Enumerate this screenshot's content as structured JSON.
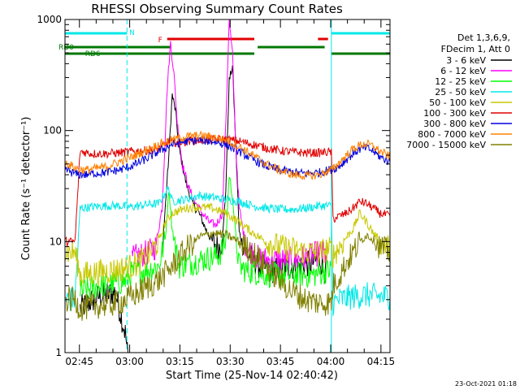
{
  "chart_data": {
    "type": "line",
    "title": "RHESSI Observing Summary Count Rates",
    "ylabel": "Count Rate (s⁻¹ detector⁻¹)",
    "xlabel": "Start Time (25-Nov-14 02:40:42)",
    "x_unit": "minutes after 02:40:42",
    "xlim": [
      0,
      97
    ],
    "ylim": [
      1,
      1000
    ],
    "y_scale": "log",
    "x_tick_labels": [
      "02:45",
      "03:00",
      "03:15",
      "03:30",
      "03:45",
      "04:00",
      "04:15"
    ],
    "x_tick_positions": [
      4.3,
      19.3,
      34.3,
      49.3,
      64.3,
      79.3,
      94.3
    ],
    "y_tick_labels": [
      "1",
      "10",
      "100",
      "1000"
    ],
    "y_tick_values": [
      1,
      10,
      100,
      1000
    ],
    "legend_header": [
      "Det 1,3,6,9,",
      "FDecim 1, Att 0"
    ],
    "legend_position": "right",
    "timestamp": "23-Oct-2021 01:18",
    "flag_labels": {
      "N": "N",
      "F": "F",
      "RD0": "RD0",
      "RD6": "RD6"
    },
    "flags": [
      {
        "label": "N",
        "color": "#00e8e8",
        "row": 0,
        "segments": [
          [
            0,
            18.5
          ],
          [
            79.5,
            97
          ]
        ]
      },
      {
        "label": "F",
        "color": "#e00000",
        "row": 1,
        "segments": [
          [
            30.5,
            56.5
          ],
          [
            75.5,
            78.5
          ]
        ]
      },
      {
        "label": "RD0",
        "color": "#007800",
        "row": 2,
        "segments": [
          [
            0,
            31.5
          ],
          [
            57.5,
            77.5
          ]
        ]
      },
      {
        "label": "RD6",
        "color": "#007800",
        "row": 3,
        "segments": [
          [
            0,
            32.5
          ],
          [
            32.5,
            56.5
          ],
          [
            79.5,
            97
          ]
        ]
      }
    ],
    "vertical_lines": [
      {
        "x": 0,
        "color": "#00e8e8",
        "style": "solid"
      },
      {
        "x": 18.5,
        "color": "#00e8e8",
        "style": "dash"
      },
      {
        "x": 79.5,
        "color": "#00e8e8",
        "style": "solid"
      },
      {
        "x": 97,
        "color": "#00e8e8",
        "style": "dash"
      }
    ],
    "series": [
      {
        "name": "3 - 6 keV",
        "color": "#000000",
        "x": [
          0,
          4,
          4.5,
          10,
          15,
          18,
          19,
          20,
          25,
          29,
          31,
          32,
          33,
          34,
          36,
          38,
          40,
          42,
          44,
          46,
          47,
          48,
          49,
          50,
          51,
          52,
          54,
          58,
          62,
          66,
          70,
          74,
          76,
          78,
          80,
          82,
          84,
          88,
          92,
          97
        ],
        "values": [
          null,
          null,
          2.5,
          3.2,
          3.5,
          1.5,
          0.8,
          null,
          null,
          8,
          60,
          210,
          150,
          70,
          35,
          22,
          18,
          13,
          10,
          9,
          10,
          30,
          280,
          380,
          70,
          12,
          8,
          6,
          5.5,
          5.8,
          6,
          6.5,
          7,
          5,
          null,
          null,
          null,
          null,
          null,
          null
        ]
      },
      {
        "name": "6 - 12 keV",
        "color": "#ff00ff",
        "x": [
          20,
          22,
          25,
          27,
          29,
          30.5,
          31.5,
          32.5,
          33.5,
          35,
          37,
          39,
          41,
          43,
          45,
          47,
          48,
          49,
          50,
          51,
          52,
          54,
          58,
          62,
          66,
          70,
          74,
          76,
          78
        ],
        "values": [
          7,
          7.5,
          8,
          9,
          20,
          240,
          620,
          330,
          120,
          50,
          30,
          22,
          18,
          15,
          14,
          18,
          120,
          980,
          480,
          70,
          20,
          9,
          7,
          6.8,
          6.8,
          7,
          7.5,
          8,
          7.5
        ]
      },
      {
        "name": "12 - 25 keV",
        "color": "#00ff00",
        "x": [
          0,
          4,
          4.5,
          10,
          15,
          18,
          20,
          24,
          28,
          30,
          31,
          32,
          34,
          38,
          42,
          46,
          48,
          49,
          50,
          51,
          52,
          54,
          58,
          62,
          66,
          70,
          74,
          76,
          78,
          79.5,
          80,
          82,
          86,
          90,
          94,
          97
        ],
        "values": [
          null,
          null,
          3.5,
          4,
          4.2,
          4.4,
          5.2,
          5.5,
          6,
          11,
          30,
          13,
          6,
          6.5,
          7,
          7.5,
          10,
          40,
          25,
          11,
          6,
          5.5,
          5.2,
          5,
          5,
          5,
          5,
          5.2,
          5.5,
          5.5,
          null,
          null,
          null,
          null,
          null,
          null
        ]
      },
      {
        "name": "25 - 50 keV",
        "color": "#00e8e8",
        "x": [
          0,
          3,
          4.5,
          8,
          12,
          16,
          20,
          24,
          28,
          30,
          31,
          32,
          36,
          40,
          44,
          48,
          52,
          56,
          60,
          64,
          68,
          72,
          76,
          78,
          79.5,
          80,
          82,
          86,
          90,
          94,
          97
        ],
        "values": [
          3,
          3,
          20,
          20.5,
          21,
          21,
          20.5,
          21.5,
          22,
          28,
          30,
          23,
          24,
          26,
          25,
          24,
          23,
          21,
          20,
          19.5,
          19.5,
          20,
          21,
          21,
          21,
          2.8,
          3,
          3.2,
          3.3,
          3.2,
          3.2
        ]
      },
      {
        "name": "50 - 100 keV",
        "color": "#c8c800",
        "x": [
          0,
          3,
          4.5,
          8,
          12,
          16,
          20,
          24,
          28,
          30,
          32,
          36,
          40,
          44,
          48,
          52,
          56,
          60,
          64,
          68,
          72,
          76,
          78,
          79.5,
          80,
          82,
          84,
          86,
          88,
          90,
          92,
          94,
          97
        ],
        "values": [
          8,
          8,
          5,
          5.2,
          5.4,
          5.6,
          6,
          7,
          10,
          15,
          18,
          20,
          20.5,
          20,
          18,
          15,
          12,
          10,
          9,
          8.5,
          8,
          8,
          8.5,
          8.5,
          7.5,
          9,
          11,
          13,
          18,
          15,
          12,
          10,
          9
        ]
      },
      {
        "name": "100 - 300 keV",
        "color": "#e00000",
        "x": [
          0,
          3,
          4.5,
          8,
          12,
          16,
          20,
          24,
          28,
          30,
          31,
          32,
          36,
          40,
          44,
          48,
          52,
          56,
          60,
          64,
          68,
          72,
          76,
          78,
          79.5,
          80,
          82,
          84,
          86,
          88,
          90,
          92,
          94,
          97
        ],
        "values": [
          10,
          10,
          65,
          62,
          62,
          63,
          65,
          66,
          68,
          75,
          80,
          78,
          80,
          82,
          83,
          83,
          80,
          75,
          70,
          66,
          64,
          63,
          63,
          64,
          64,
          16,
          17,
          18,
          20,
          23,
          22,
          20,
          18,
          17
        ]
      },
      {
        "name": "300 - 800 keV",
        "color": "#0000e0",
        "x": [
          0,
          2,
          4,
          6,
          8,
          12,
          16,
          20,
          24,
          28,
          32,
          36,
          40,
          44,
          48,
          52,
          56,
          60,
          64,
          68,
          72,
          76,
          80,
          82,
          84,
          86,
          88,
          90,
          92,
          94,
          97
        ],
        "values": [
          45,
          42,
          40,
          40,
          41,
          42,
          44,
          48,
          55,
          65,
          75,
          80,
          82,
          80,
          75,
          65,
          55,
          48,
          44,
          42,
          41,
          42,
          45,
          48,
          55,
          62,
          68,
          70,
          65,
          58,
          52
        ]
      },
      {
        "name": "800 - 7000 keV",
        "color": "#ff8000",
        "x": [
          0,
          2,
          4,
          6,
          8,
          12,
          16,
          20,
          24,
          28,
          32,
          36,
          40,
          44,
          48,
          52,
          56,
          60,
          64,
          68,
          72,
          76,
          80,
          82,
          84,
          86,
          88,
          90,
          92,
          94,
          97
        ],
        "values": [
          52,
          48,
          45,
          44,
          45,
          47,
          52,
          58,
          66,
          75,
          82,
          88,
          90,
          88,
          82,
          72,
          60,
          50,
          44,
          40,
          39,
          40,
          45,
          52,
          60,
          68,
          74,
          76,
          72,
          65,
          58
        ]
      },
      {
        "name": "7000 - 15000 keV",
        "color": "#808000",
        "x": [
          0,
          3,
          4.5,
          8,
          12,
          16,
          20,
          24,
          28,
          32,
          36,
          40,
          44,
          48,
          52,
          56,
          60,
          64,
          68,
          72,
          76,
          79.5,
          80,
          82,
          84,
          86,
          88,
          90,
          92,
          94,
          97
        ],
        "values": [
          3,
          3,
          2.5,
          2.6,
          2.7,
          2.8,
          3.2,
          3.8,
          4.5,
          6,
          8.5,
          11,
          12,
          11.5,
          10,
          8,
          6,
          4.5,
          3.5,
          3,
          2.8,
          2.8,
          4,
          5,
          6.5,
          8,
          10,
          11.5,
          10.5,
          9,
          8
        ]
      }
    ]
  }
}
